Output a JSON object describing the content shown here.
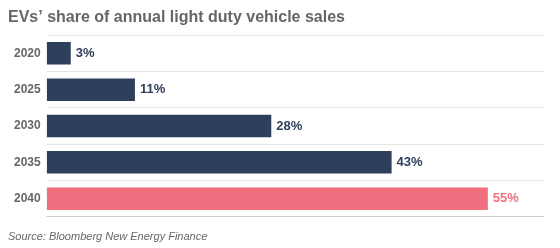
{
  "chart_data": {
    "type": "bar",
    "orientation": "horizontal",
    "title": "EVs’ share of annual light duty vehicle sales",
    "source": "Source: Bloomberg New Energy Finance",
    "categories": [
      "2020",
      "2025",
      "2030",
      "2035",
      "2040"
    ],
    "values": [
      3,
      11,
      28,
      43,
      55
    ],
    "value_labels": [
      "3%",
      "11%",
      "28%",
      "43%",
      "55%"
    ],
    "data_labels": true,
    "colors": [
      "#2e3f5c",
      "#2e3f5c",
      "#2e3f5c",
      "#2e3f5c",
      "#f07080"
    ],
    "xlim": [
      0,
      62
    ],
    "tick_labels": "y",
    "grid": true
  }
}
